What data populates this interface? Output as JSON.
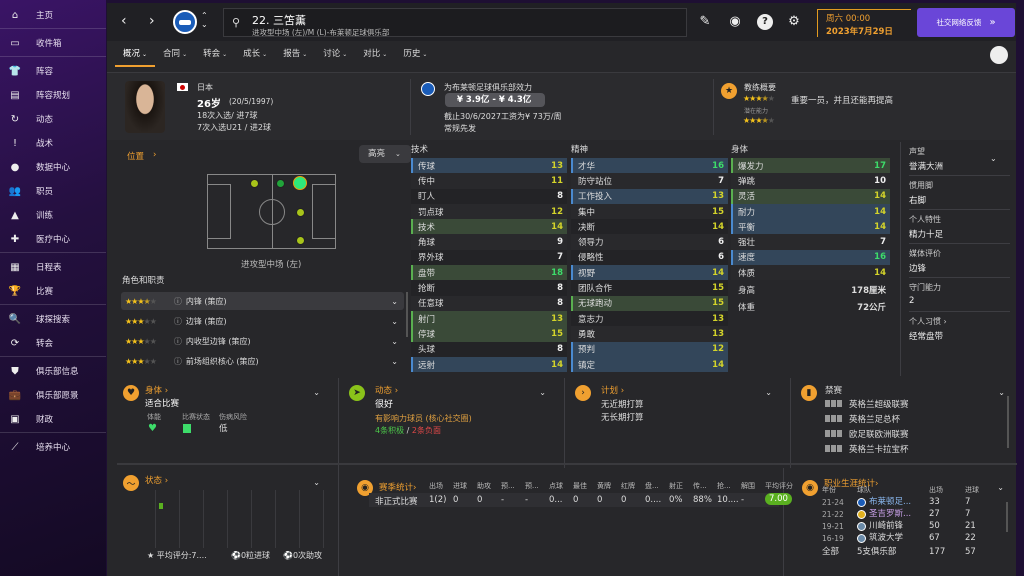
{
  "sidebar": {
    "items": [
      {
        "label": "主页",
        "icon": "home-icon",
        "glyph": "⌂",
        "sep": true
      },
      {
        "label": "收件箱",
        "icon": "inbox-icon",
        "glyph": "▭",
        "sep": true
      },
      {
        "label": "阵容",
        "icon": "shirt-icon",
        "glyph": "👕"
      },
      {
        "label": "阵容规划",
        "icon": "clipboard-icon",
        "glyph": "▤"
      },
      {
        "label": "动态",
        "icon": "dynamics-icon",
        "glyph": "↻"
      },
      {
        "label": "战术",
        "icon": "tactics-icon",
        "glyph": "!"
      },
      {
        "label": "数据中心",
        "icon": "data-hub-icon",
        "glyph": "●"
      },
      {
        "label": "职员",
        "icon": "staff-icon",
        "glyph": "👥"
      },
      {
        "label": "训练",
        "icon": "training-icon",
        "glyph": "▲"
      },
      {
        "label": "医疗中心",
        "icon": "medical-icon",
        "glyph": "✚",
        "sep": true
      },
      {
        "label": "日程表",
        "icon": "calendar-icon",
        "glyph": "▦"
      },
      {
        "label": "比赛",
        "icon": "trophy-icon",
        "glyph": "🏆",
        "sep": true
      },
      {
        "label": "球探搜索",
        "icon": "search-icon",
        "glyph": "🔍"
      },
      {
        "label": "转会",
        "icon": "transfer-icon",
        "glyph": "⟳",
        "sep": true
      },
      {
        "label": "俱乐部信息",
        "icon": "shield-icon",
        "glyph": "⛊"
      },
      {
        "label": "俱乐部愿景",
        "icon": "briefcase-icon",
        "glyph": "💼"
      },
      {
        "label": "财政",
        "icon": "money-icon",
        "glyph": "▣",
        "sep": true
      },
      {
        "label": "培养中心",
        "icon": "development-icon",
        "glyph": "⟋"
      }
    ]
  },
  "topbar": {
    "player_name": "22. 三笘薰",
    "player_sub": "进攻型中场 (左)/M (L)-布莱顿足球俱乐部",
    "date_day": "周六 00:00",
    "date": "2023年7月29日",
    "feedback": "社交网络反馈"
  },
  "tabs": [
    {
      "label": "概况"
    },
    {
      "label": "合同"
    },
    {
      "label": "转会"
    },
    {
      "label": "成长"
    },
    {
      "label": "报告"
    },
    {
      "label": "讨论"
    },
    {
      "label": "对比"
    },
    {
      "label": "历史"
    }
  ],
  "header": {
    "nation": "日本",
    "age": "26岁",
    "dob": "(20/5/1997)",
    "caps": "18次入选/ 进7球",
    "u21": "7次入选U21 / 进2球",
    "club": "为布莱顿足球俱乐部效力",
    "value": "¥ 3.9亿 - ¥ 4.3亿",
    "contract": "截止30/6/2027工资为¥ 73万/周",
    "status": "常规先发",
    "coach_title": "教练概要",
    "ca_stars": 3.5,
    "coach_text": "重要一员，并且还能再提高",
    "pa_label": "潜在能力",
    "pa_stars": 3.5
  },
  "position": {
    "title": "位置",
    "highlight": "高亮",
    "pos_label": "进攻型中场 (左)",
    "roles_title": "角色和职责",
    "roles": [
      {
        "stars": 3.5,
        "name": "内锋 (策应)"
      },
      {
        "stars": 3,
        "name": "边锋 (策应)"
      },
      {
        "stars": 3,
        "name": "内收型边锋 (策应)"
      },
      {
        "stars": 3,
        "name": "前场组织核心 (策应)"
      }
    ]
  },
  "attributes": {
    "technical": {
      "title": "技术",
      "rows": [
        [
          "传球",
          13,
          "blue"
        ],
        [
          "传中",
          11,
          ""
        ],
        [
          "盯人",
          8,
          ""
        ],
        [
          "罚点球",
          12,
          ""
        ],
        [
          "技术",
          14,
          "green"
        ],
        [
          "角球",
          9,
          ""
        ],
        [
          "界外球",
          7,
          ""
        ],
        [
          "盘带",
          18,
          "green"
        ],
        [
          "抢断",
          8,
          ""
        ],
        [
          "任意球",
          8,
          ""
        ],
        [
          "射门",
          13,
          "green"
        ],
        [
          "停球",
          15,
          "green"
        ],
        [
          "头球",
          8,
          ""
        ],
        [
          "远射",
          14,
          "blue"
        ]
      ]
    },
    "mental": {
      "title": "精神",
      "rows": [
        [
          "才华",
          16,
          "blue"
        ],
        [
          "防守站位",
          7,
          ""
        ],
        [
          "工作投入",
          13,
          "blue"
        ],
        [
          "集中",
          15,
          ""
        ],
        [
          "决断",
          14,
          ""
        ],
        [
          "领导力",
          6,
          ""
        ],
        [
          "侵略性",
          6,
          ""
        ],
        [
          "视野",
          14,
          "blue"
        ],
        [
          "团队合作",
          15,
          ""
        ],
        [
          "无球跑动",
          15,
          "green"
        ],
        [
          "意志力",
          13,
          ""
        ],
        [
          "勇敢",
          13,
          ""
        ],
        [
          "预判",
          12,
          "blue"
        ],
        [
          "镇定",
          14,
          "blue"
        ]
      ]
    },
    "physical": {
      "title": "身体",
      "rows": [
        [
          "爆发力",
          17,
          "green"
        ],
        [
          "弹跳",
          10,
          ""
        ],
        [
          "灵活",
          14,
          "green"
        ],
        [
          "耐力",
          14,
          "blue"
        ],
        [
          "平衡",
          14,
          "blue"
        ],
        [
          "强壮",
          7,
          ""
        ],
        [
          "速度",
          16,
          "blue"
        ],
        [
          "体质",
          14,
          ""
        ]
      ],
      "height_label": "身高",
      "height": "178厘米",
      "weight_label": "体重",
      "weight": "72公斤"
    }
  },
  "side_info": [
    {
      "k": "声望",
      "v": "誉满大洲"
    },
    {
      "k": "惯用脚",
      "v": "右脚"
    },
    {
      "k": "个人特性",
      "v": "精力十足"
    },
    {
      "k": "媒体评价",
      "v": "边锋"
    },
    {
      "k": "守门能力",
      "v": "2"
    },
    {
      "k": "个人习惯 ›",
      "v": "经常盘带"
    }
  ],
  "cards": {
    "fitness": {
      "title": "身体 ›",
      "status": "适合比赛",
      "l1": "体能",
      "l2": "比赛状态",
      "l3": "伤病风险",
      "v3": "低"
    },
    "dynamics": {
      "title": "动态 ›",
      "status": "很好",
      "role": "有影响力球员 (核心社交圈)",
      "pos": "4条积极",
      "sep": " / ",
      "neg": "2条负面"
    },
    "plans": {
      "title": "计划 ›",
      "l1": "无近期打算",
      "l2": "无长期打算"
    },
    "bans": {
      "title": "禁赛",
      "items": [
        "英格兰超级联赛",
        "英格兰足总杯",
        "欧足联欧洲联赛",
        "英格兰卡拉宝杯"
      ]
    },
    "form": {
      "title": "状态 ›",
      "avg": "平均评分:7....",
      "goals": "0粒进球",
      "assists": "0次助攻"
    },
    "season": {
      "title": "赛季统计›",
      "headers": [
        "出场",
        "进球",
        "助攻",
        "预...",
        "预...",
        "点球",
        "最佳",
        "黄牌",
        "红牌",
        "盘...",
        "射正",
        "传...",
        "抢...",
        "解围",
        "平均评分"
      ],
      "row_label": "非正式比赛",
      "values": [
        "1(2)",
        "0",
        "0",
        "-",
        "-",
        "0...",
        "0",
        "0",
        "0",
        "0....",
        "0%",
        "88%",
        "10....",
        "-",
        "7.00"
      ]
    },
    "career": {
      "title": "职业生涯统计›",
      "headers": [
        "年份",
        "球队",
        "出场",
        "进球"
      ],
      "rows": [
        [
          "21-24",
          "布莱顿足...",
          "33",
          "7"
        ],
        [
          "21-22",
          "圣吉罗斯...",
          "27",
          "7"
        ],
        [
          "19-21",
          "川崎前锋",
          "50",
          "21"
        ],
        [
          "16-19",
          "筑波大学",
          "67",
          "22"
        ]
      ],
      "total": [
        "全部",
        "5支俱乐部",
        "177",
        "57"
      ]
    }
  },
  "colors": {
    "accent": "#f0a030",
    "feedback": "#6a46d8",
    "good": "#3ddc6a",
    "mid": "#d4d42a"
  }
}
